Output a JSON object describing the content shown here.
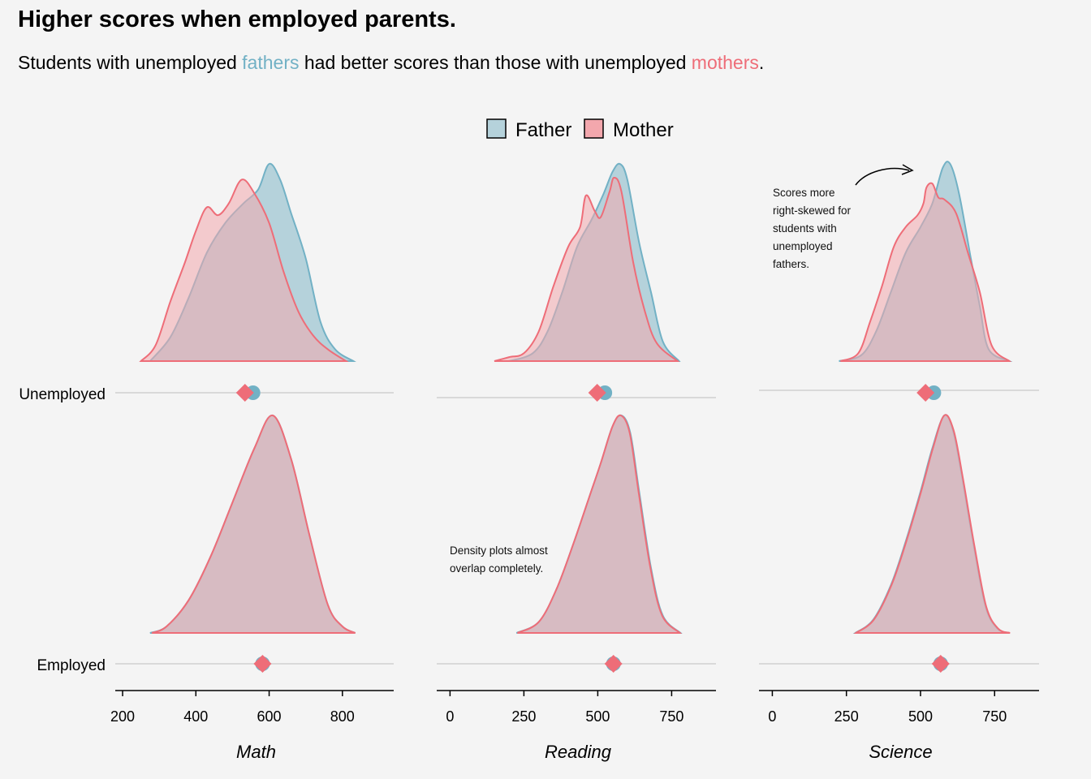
{
  "title": "Higher scores when employed parents.",
  "subtitle": {
    "prefix": "Students with unemployed ",
    "fathers": "fathers",
    "middle": " had better scores than those with unemployed ",
    "mothers": "mothers",
    "suffix": "."
  },
  "colors": {
    "father": "#72b1c5",
    "father_fill": "#b5d2db",
    "mother": "#ee6d78",
    "mother_fill": "#f3a7ad",
    "overlap": "#d4a4ac",
    "background": "#f4f4f4"
  },
  "legend": {
    "items": [
      "Father",
      "Mother"
    ]
  },
  "annotations": [
    {
      "facet": "Science",
      "row": "Unemployed",
      "lines": [
        "Scores more",
        "right-skewed for",
        "students with",
        "unemployed",
        "fathers."
      ]
    },
    {
      "facet": "Reading",
      "row": "Employed",
      "lines": [
        "Density plots almost",
        "overlap completely."
      ]
    }
  ],
  "chart_data": {
    "type": "ridgeline density with point estimates",
    "rows": [
      "Unemployed",
      "Employed"
    ],
    "series": [
      "Father",
      "Mother"
    ],
    "facets": [
      {
        "name": "Math",
        "xlim": [
          180,
          940
        ],
        "ticks": [
          200,
          400,
          600,
          800
        ],
        "densities": {
          "Unemployed": {
            "Father": {
              "x": [
                275,
                330,
                380,
                430,
                480,
                530,
                570,
                600,
                630,
                660,
                700,
                740,
                780,
                830
              ],
              "y": [
                0,
                0.12,
                0.32,
                0.55,
                0.7,
                0.8,
                0.87,
                1.0,
                0.92,
                0.75,
                0.52,
                0.2,
                0.06,
                0
              ]
            },
            "Mother": {
              "x": [
                250,
                290,
                330,
                370,
                400,
                430,
                460,
                490,
                525,
                560,
                600,
                640,
                680,
                720,
                760,
                810
              ],
              "y": [
                0,
                0.08,
                0.3,
                0.5,
                0.66,
                0.78,
                0.74,
                0.8,
                0.92,
                0.85,
                0.7,
                0.45,
                0.25,
                0.13,
                0.06,
                0
              ]
            }
          },
          "Employed": {
            "Father": {
              "x": [
                275,
                320,
                380,
                440,
                500,
                560,
                610,
                660,
                710,
                760,
                800,
                835
              ],
              "y": [
                0,
                0.03,
                0.15,
                0.35,
                0.6,
                0.85,
                1.0,
                0.8,
                0.45,
                0.13,
                0.03,
                0
              ]
            },
            "Mother": {
              "x": [
                280,
                320,
                380,
                440,
                500,
                560,
                610,
                660,
                710,
                760,
                800,
                835
              ],
              "y": [
                0,
                0.03,
                0.15,
                0.35,
                0.6,
                0.85,
                1.0,
                0.8,
                0.45,
                0.13,
                0.03,
                0
              ]
            }
          }
        },
        "points": {
          "Unemployed": {
            "Father": 556,
            "Mother": 534
          },
          "Employed": {
            "Father": 582,
            "Mother": 582
          }
        }
      },
      {
        "name": "Reading",
        "xlim": [
          -45,
          900
        ],
        "ticks": [
          0,
          250,
          500,
          750
        ],
        "densities": {
          "Unemployed": {
            "Father": {
              "x": [
                200,
                280,
                330,
                380,
                430,
                480,
                520,
                550,
                575,
                600,
                640,
                680,
                720,
                775
              ],
              "y": [
                0,
                0.04,
                0.15,
                0.35,
                0.58,
                0.72,
                0.85,
                0.96,
                1.0,
                0.92,
                0.6,
                0.35,
                0.1,
                0
              ]
            },
            "Mother": {
              "x": [
                150,
                200,
                250,
                300,
                350,
                400,
                440,
                460,
                490,
                510,
                540,
                555,
                580,
                620,
                660,
                700,
                770
              ],
              "y": [
                0,
                0.02,
                0.04,
                0.15,
                0.38,
                0.58,
                0.68,
                0.84,
                0.76,
                0.73,
                0.86,
                0.93,
                0.86,
                0.5,
                0.25,
                0.09,
                0
              ]
            }
          },
          "Employed": {
            "Father": {
              "x": [
                225,
                300,
                360,
                420,
                470,
                510,
                550,
                580,
                610,
                640,
                680,
                720,
                780
              ],
              "y": [
                0,
                0.05,
                0.2,
                0.42,
                0.62,
                0.78,
                0.95,
                1.0,
                0.92,
                0.65,
                0.3,
                0.08,
                0
              ]
            },
            "Mother": {
              "x": [
                228,
                300,
                360,
                420,
                470,
                510,
                550,
                578,
                608,
                638,
                678,
                718,
                778
              ],
              "y": [
                0,
                0.05,
                0.2,
                0.42,
                0.62,
                0.78,
                0.95,
                1.0,
                0.92,
                0.65,
                0.3,
                0.08,
                0
              ]
            }
          }
        },
        "points": {
          "Unemployed": {
            "Father": 524,
            "Mother": 498
          },
          "Employed": {
            "Father": 553,
            "Mother": 553
          }
        }
      },
      {
        "name": "Science",
        "xlim": [
          -45,
          900
        ],
        "ticks": [
          0,
          250,
          500,
          750
        ],
        "densities": {
          "Unemployed": {
            "Father": {
              "x": [
                225,
                300,
                350,
                400,
                450,
                500,
                540,
                575,
                600,
                630,
                670,
                700,
                730,
                800
              ],
              "y": [
                0,
                0.03,
                0.15,
                0.35,
                0.55,
                0.68,
                0.8,
                0.98,
                1.0,
                0.85,
                0.52,
                0.28,
                0.06,
                0
              ]
            },
            "Mother": {
              "x": [
                230,
                290,
                330,
                370,
                410,
                450,
                490,
                510,
                520,
                540,
                560,
                580,
                620,
                660,
                700,
                740,
                800
              ],
              "y": [
                0,
                0.04,
                0.2,
                0.38,
                0.58,
                0.68,
                0.74,
                0.8,
                0.88,
                0.9,
                0.83,
                0.82,
                0.75,
                0.55,
                0.35,
                0.08,
                0
              ]
            }
          },
          "Employed": {
            "Father": {
              "x": [
                280,
                340,
                400,
                450,
                500,
                540,
                580,
                610,
                640,
                680,
                720,
                760,
                800
              ],
              "y": [
                0,
                0.06,
                0.22,
                0.42,
                0.65,
                0.85,
                1.0,
                0.93,
                0.72,
                0.4,
                0.12,
                0.02,
                0
              ]
            },
            "Mother": {
              "x": [
                282,
                342,
                402,
                452,
                502,
                542,
                580,
                612,
                642,
                682,
                722,
                762,
                802
              ],
              "y": [
                0,
                0.06,
                0.22,
                0.42,
                0.65,
                0.85,
                1.0,
                0.93,
                0.72,
                0.4,
                0.12,
                0.02,
                0
              ]
            }
          }
        },
        "points": {
          "Unemployed": {
            "Father": 545,
            "Mother": 517
          },
          "Employed": {
            "Father": 568,
            "Mother": 568
          }
        }
      }
    ]
  }
}
